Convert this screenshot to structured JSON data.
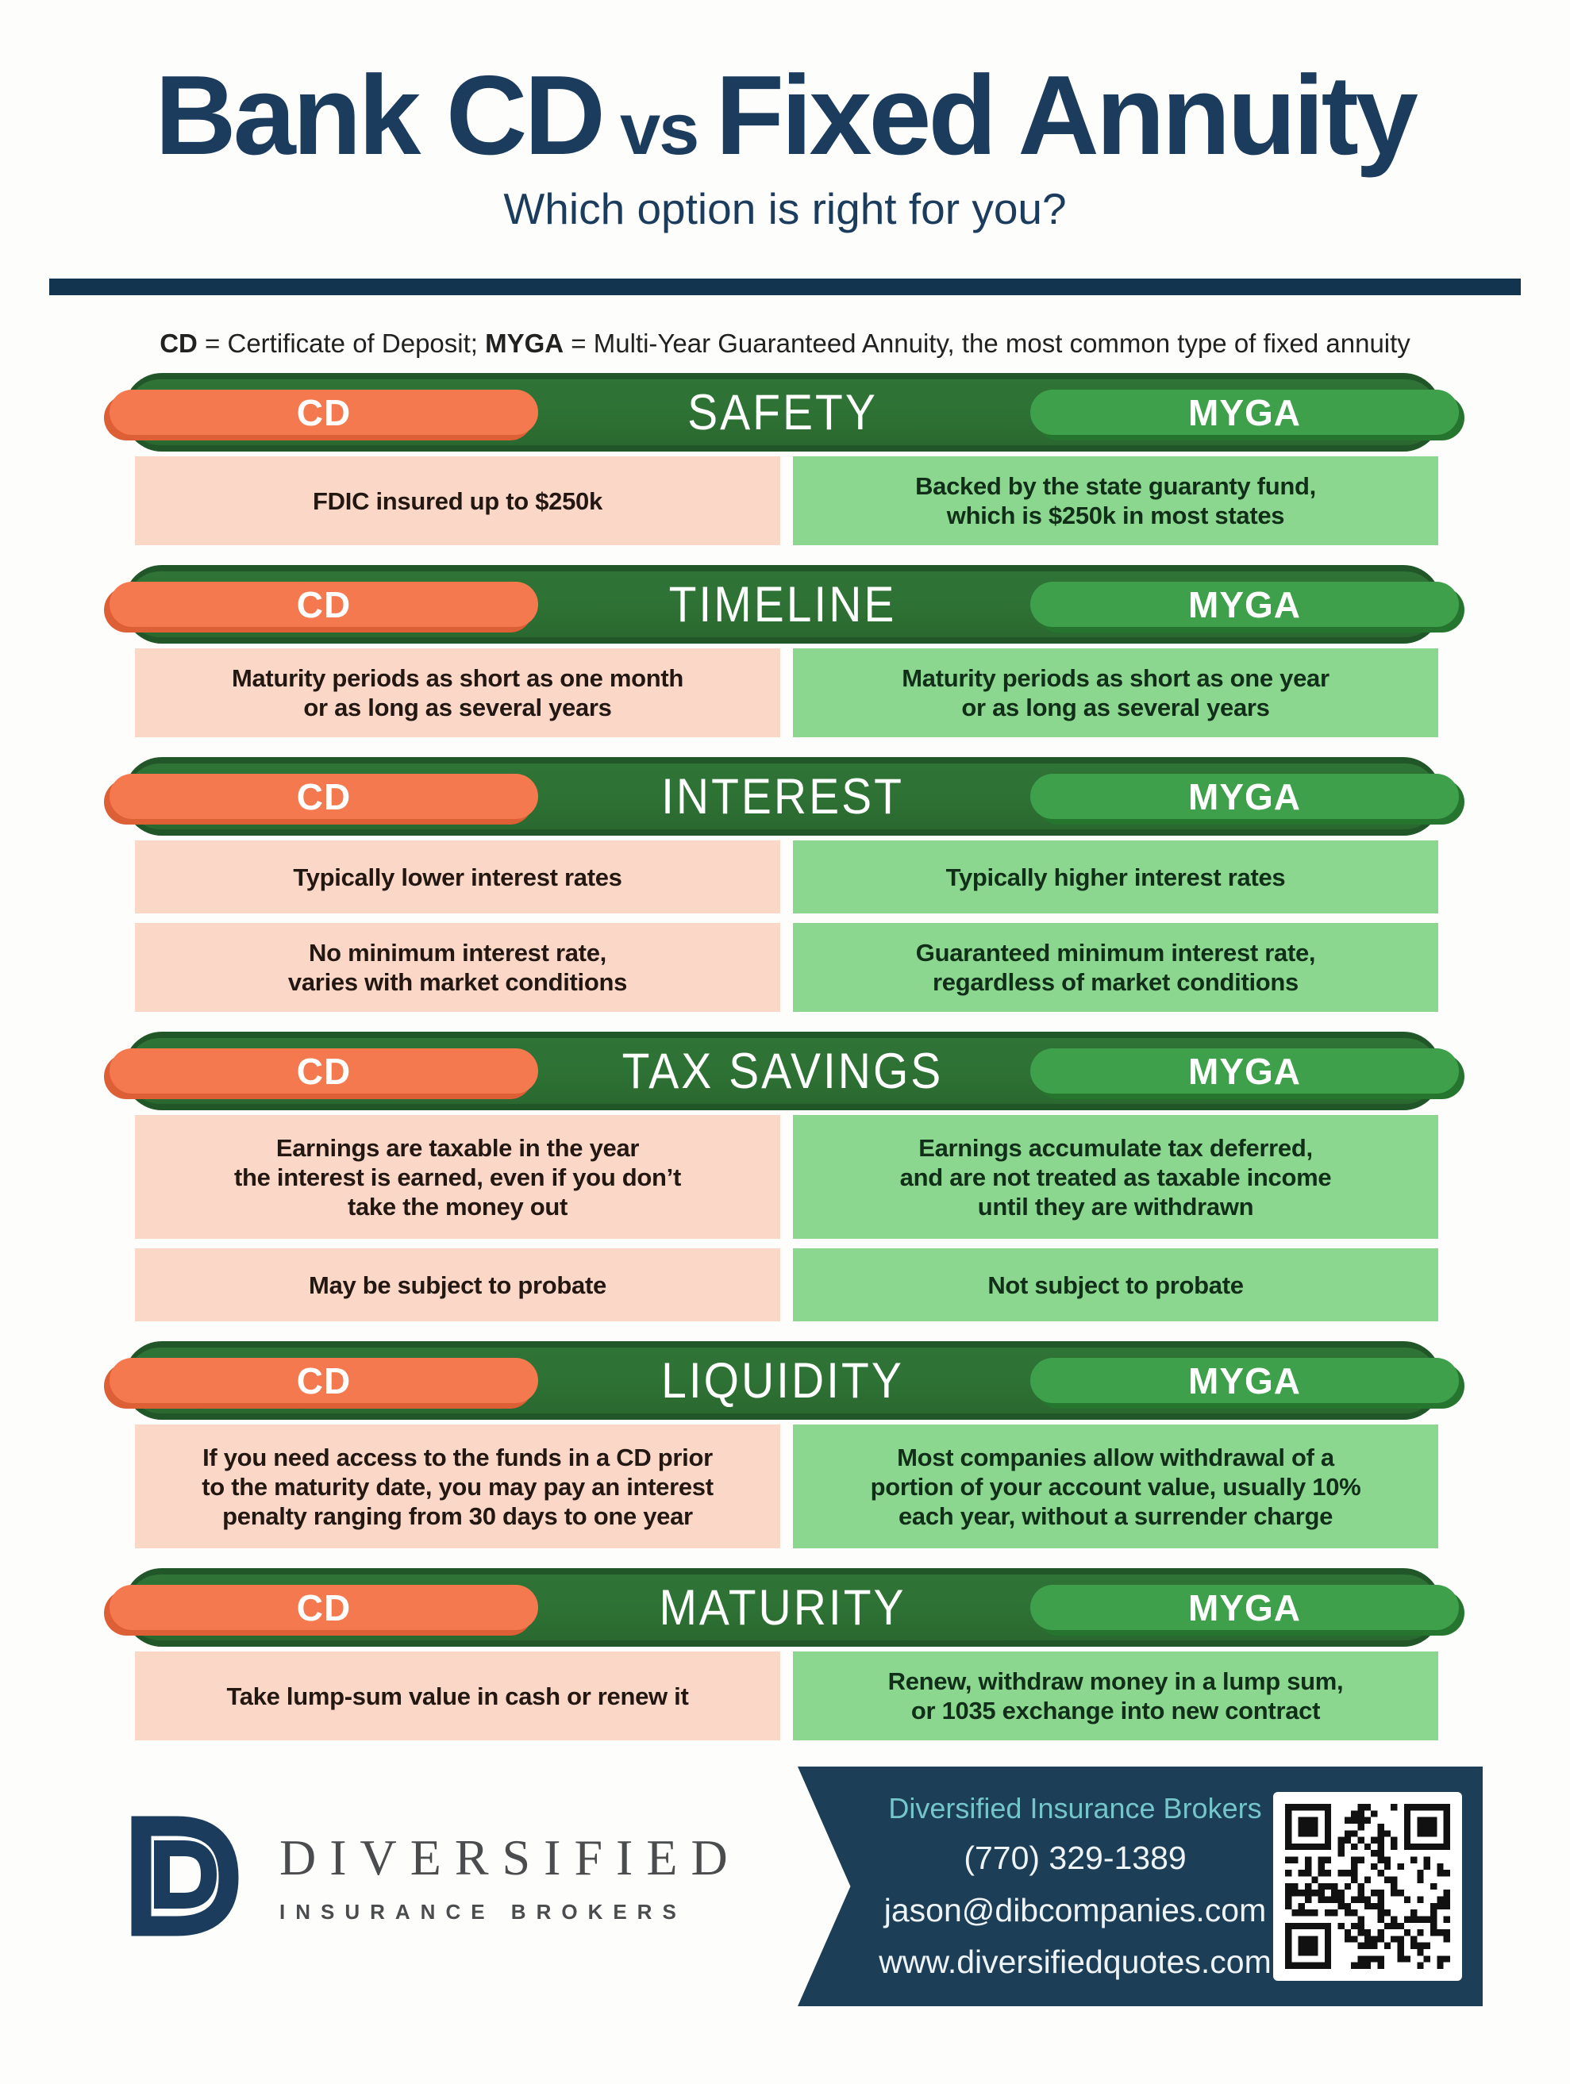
{
  "title": {
    "main_left": "Bank CD",
    "vs": "vs",
    "main_right": "Fixed Annuity",
    "subtitle": "Which option is right for you?"
  },
  "definition": {
    "term1": "CD",
    "text1": " = Certificate of Deposit; ",
    "term2": "MYGA",
    "text2": " = Multi-Year Guaranteed Annuity, the most common type of fixed annuity"
  },
  "column_labels": {
    "cd": "CD",
    "myga": "MYGA"
  },
  "sections": [
    {
      "title": "SAFETY",
      "rows": [
        {
          "cd": "FDIC insured up to $250k",
          "myga": "Backed by the state guaranty fund,\nwhich is $250k in most states"
        }
      ]
    },
    {
      "title": "TIMELINE",
      "rows": [
        {
          "cd": "Maturity periods as short as one month\nor as long as several years",
          "myga": "Maturity periods as short as one year\nor as long as several years"
        }
      ]
    },
    {
      "title": "INTEREST",
      "rows": [
        {
          "cd": "Typically lower interest rates",
          "myga": "Typically higher interest rates"
        },
        {
          "cd": "No minimum interest rate,\nvaries with market conditions",
          "myga": "Guaranteed minimum interest rate,\nregardless of market conditions"
        }
      ]
    },
    {
      "title": "TAX SAVINGS",
      "rows": [
        {
          "cd": "Earnings are taxable in the year\nthe interest is earned, even if you don’t\ntake the money out",
          "myga": "Earnings accumulate tax deferred,\nand are not treated as taxable income\nuntil they are withdrawn"
        },
        {
          "cd": "May be subject to probate",
          "myga": "Not subject to probate"
        }
      ]
    },
    {
      "title": "LIQUIDITY",
      "rows": [
        {
          "cd": "If you need access to the funds in a CD prior\nto the maturity date, you may pay an interest\npenalty ranging from 30 days to one year",
          "myga": "Most companies allow withdrawal of a\nportion of your account value, usually 10%\neach year, without a surrender charge"
        }
      ]
    },
    {
      "title": "MATURITY",
      "rows": [
        {
          "cd": "Take lump-sum value in cash or renew it",
          "myga": "Renew, withdraw money in a lump sum,\nor 1035 exchange into new contract"
        }
      ]
    }
  ],
  "footer": {
    "brand_name": "DIVERSIFIED",
    "brand_tagline": "INSURANCE BROKERS",
    "contact_heading": "Diversified Insurance Brokers",
    "phone": "(770) 329-1389",
    "email": "jason@dibcompanies.com",
    "website": "www.diversifiedquotes.com"
  },
  "colors": {
    "title_navy": "#1c3c5e",
    "rule_navy": "#12344f",
    "bar_green": "#2e7134",
    "bar_rim_green": "#215628",
    "cd_orange": "#f4794f",
    "cd_orange_shadow": "#dc5f36",
    "myga_green": "#3fa04b",
    "myga_green_shadow": "#26752f",
    "cd_box_pink": "#fbd7c8",
    "myga_box_green": "#8bd78f",
    "banner_navy": "#1c3e57",
    "banner_teal": "#74c6cb"
  }
}
